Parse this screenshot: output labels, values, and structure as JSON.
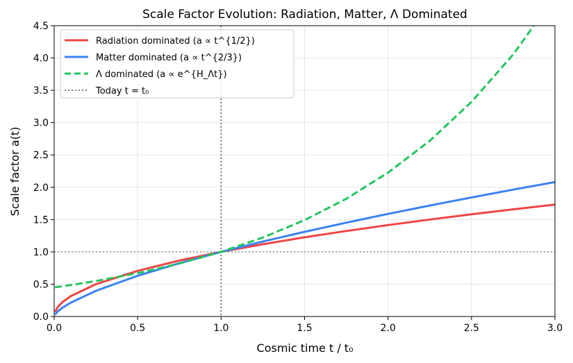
{
  "chart_data": {
    "type": "line",
    "title": "Scale Factor Evolution: Radiation, Matter, Λ Dominated",
    "xlabel": "Cosmic time t / t₀",
    "ylabel": "Scale factor a(t)",
    "xlim": [
      0,
      3.0
    ],
    "ylim": [
      0,
      4.5
    ],
    "grid": true,
    "legend_placement": "upper-left",
    "xticks": [
      "0.0",
      "0.5",
      "1.0",
      "1.5",
      "2.0",
      "2.5",
      "3.0"
    ],
    "yticks": [
      "0.0",
      "0.5",
      "1.0",
      "1.5",
      "2.0",
      "2.5",
      "3.0",
      "3.5",
      "4.0",
      "4.5"
    ],
    "x": [
      0.005,
      0.02,
      0.05,
      0.1,
      0.25,
      0.5,
      0.75,
      1.0,
      1.25,
      1.5,
      1.75,
      2.0,
      2.25,
      2.5,
      2.75,
      3.0
    ],
    "series": [
      {
        "name": "Radiation dominated (a ∝ t^{1/2})",
        "color": "#ef4444",
        "style": "solid",
        "values": [
          0.071,
          0.141,
          0.224,
          0.316,
          0.5,
          0.707,
          0.866,
          1.0,
          1.118,
          1.225,
          1.323,
          1.414,
          1.5,
          1.581,
          1.658,
          1.732
        ]
      },
      {
        "name": "Matter dominated (a ∝ t^{2/3})",
        "color": "#3b82f6",
        "style": "solid",
        "values": [
          0.029,
          0.074,
          0.136,
          0.215,
          0.397,
          0.63,
          0.825,
          1.0,
          1.16,
          1.31,
          1.452,
          1.587,
          1.717,
          1.842,
          1.963,
          2.08
        ]
      },
      {
        "name": "Λ dominated (a ∝ e^{H_Λt})",
        "color": "#22c55e",
        "style": "dashed",
        "values": [
          0.451,
          0.457,
          0.468,
          0.487,
          0.549,
          0.67,
          0.819,
          1.0,
          1.221,
          1.492,
          1.822,
          2.226,
          2.718,
          3.32,
          4.055,
          4.953
        ]
      }
    ],
    "reference_lines": [
      {
        "name": "Today t = t₀",
        "orientation": "vertical",
        "value": 1.0,
        "color": "#808080",
        "style": "dotted"
      },
      {
        "orientation": "horizontal",
        "value": 1.0,
        "color": "#808080",
        "style": "dotted"
      }
    ]
  }
}
